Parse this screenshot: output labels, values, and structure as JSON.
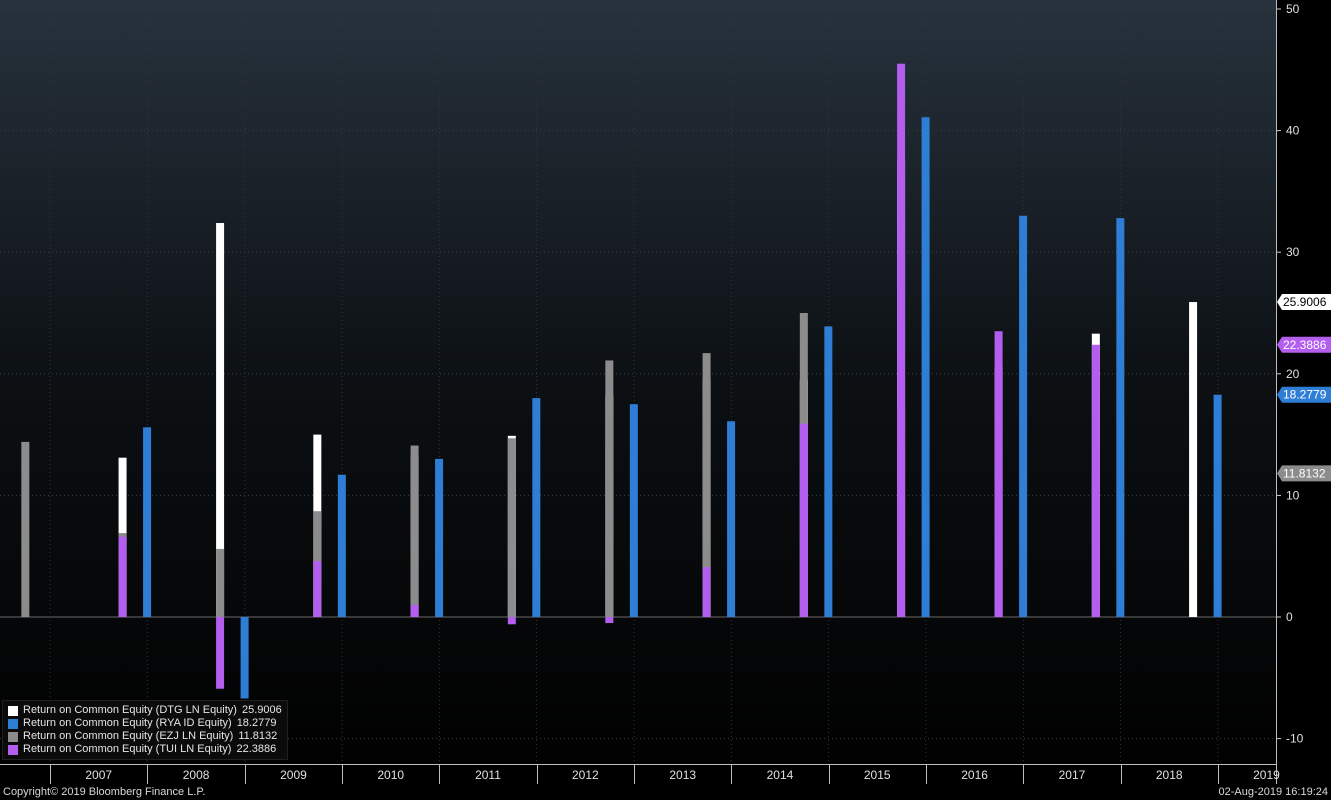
{
  "chart_data": {
    "type": "bar",
    "ylim": [
      -12,
      50
    ],
    "y_ticks": [
      -10,
      0,
      10,
      20,
      30,
      40,
      50
    ],
    "x_labels": [
      "2007",
      "2008",
      "2009",
      "2010",
      "2011",
      "2012",
      "2013",
      "2014",
      "2015",
      "2016",
      "2017",
      "2018",
      "2019"
    ],
    "grid": true,
    "legend_position": "bottom-left",
    "series": [
      {
        "name": "Return on Common Equity (DTG LN Equity)",
        "last_value": "25.9006",
        "color": "#ffffff",
        "points": [
          {
            "date": "2007-09-30",
            "value": 13.1
          },
          {
            "date": "2008-09-30",
            "value": 32.4
          },
          {
            "date": "2009-09-30",
            "value": 15.0
          },
          {
            "date": "2010-09-30",
            "value": 13.2
          },
          {
            "date": "2011-09-30",
            "value": 14.9
          },
          {
            "date": "2012-09-30",
            "value": 18.2
          },
          {
            "date": "2013-09-30",
            "value": 19.6
          },
          {
            "date": "2014-09-30",
            "value": 19.5
          },
          {
            "date": "2015-09-30",
            "value": 37.5
          },
          {
            "date": "2016-09-30",
            "value": 20.6
          },
          {
            "date": "2017-09-30",
            "value": 23.3
          },
          {
            "date": "2018-09-30",
            "value": 25.9006
          }
        ]
      },
      {
        "name": "Return on Common Equity (RYA ID Equity)",
        "last_value": "18.2779",
        "color": "#2f7ed6",
        "points": [
          {
            "date": "2007-12-31",
            "value": 15.6
          },
          {
            "date": "2008-12-31",
            "value": -6.7
          },
          {
            "date": "2009-12-31",
            "value": 11.7
          },
          {
            "date": "2010-12-31",
            "value": 13.0
          },
          {
            "date": "2011-12-31",
            "value": 18.0
          },
          {
            "date": "2012-12-31",
            "value": 17.5
          },
          {
            "date": "2013-12-31",
            "value": 16.1
          },
          {
            "date": "2014-12-31",
            "value": 23.9
          },
          {
            "date": "2015-12-31",
            "value": 41.1
          },
          {
            "date": "2016-12-31",
            "value": 33.0
          },
          {
            "date": "2017-12-31",
            "value": 32.8
          },
          {
            "date": "2018-12-31",
            "value": 18.2779
          }
        ]
      },
      {
        "name": "Return on Common Equity (EZJ LN Equity)",
        "last_value": "11.8132",
        "color": "#8c8c8c",
        "points": [
          {
            "date": "2006-09-30",
            "value": 14.4
          },
          {
            "date": "2007-09-30",
            "value": 6.9
          },
          {
            "date": "2008-09-30",
            "value": 5.6
          },
          {
            "date": "2009-09-30",
            "value": 8.7
          },
          {
            "date": "2010-09-30",
            "value": 14.1
          },
          {
            "date": "2011-09-30",
            "value": 14.7
          },
          {
            "date": "2012-09-30",
            "value": 21.1
          },
          {
            "date": "2013-09-30",
            "value": 21.7
          },
          {
            "date": "2014-09-30",
            "value": 25.0
          },
          {
            "date": "2015-09-30",
            "value": 17.3
          },
          {
            "date": "2016-09-30",
            "value": 11.2
          },
          {
            "date": "2017-09-30",
            "value": 11.8132
          }
        ]
      },
      {
        "name": "Return on Common Equity (TUI LN Equity)",
        "last_value": "22.3886",
        "color": "#b45ef0",
        "points": [
          {
            "date": "2007-09-30",
            "value": 6.6
          },
          {
            "date": "2008-09-30",
            "value": -5.9
          },
          {
            "date": "2009-09-30",
            "value": 4.6
          },
          {
            "date": "2010-09-30",
            "value": 1.0
          },
          {
            "date": "2011-09-30",
            "value": -0.6
          },
          {
            "date": "2012-09-30",
            "value": -0.5
          },
          {
            "date": "2013-09-30",
            "value": 4.1
          },
          {
            "date": "2014-09-30",
            "value": 15.9
          },
          {
            "date": "2015-09-30",
            "value": 45.5
          },
          {
            "date": "2016-09-30",
            "value": 23.5
          },
          {
            "date": "2017-09-30",
            "value": 22.3886
          }
        ]
      }
    ]
  },
  "footer": {
    "copyright": "Copyright© 2019 Bloomberg Finance L.P.",
    "timestamp": "02-Aug-2019 16:19:24"
  }
}
